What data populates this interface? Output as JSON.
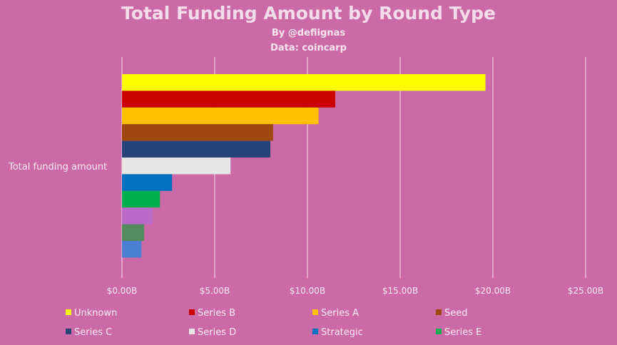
{
  "header": {
    "title": "Total Funding Amount by Round Type",
    "byline": "By @defiignas",
    "source": "Data: coincarp"
  },
  "chart_data": {
    "type": "bar",
    "orientation": "horizontal",
    "category_label": "Total funding amount",
    "x_ticks": [
      "$0.00B",
      "$5.00B",
      "$10.00B",
      "$15.00B",
      "$20.00B",
      "$25.00B"
    ],
    "xlim": [
      0,
      25
    ],
    "grid": true,
    "legend_position": "bottom",
    "series": [
      {
        "name": "Unknown",
        "value": 19.6,
        "color": "#ffff00"
      },
      {
        "name": "Series B",
        "value": 11.5,
        "color": "#cc0000"
      },
      {
        "name": "Series A",
        "value": 10.6,
        "color": "#ffc000"
      },
      {
        "name": "Seed",
        "value": 8.15,
        "color": "#9e480e"
      },
      {
        "name": "Series C",
        "value": 8.0,
        "color": "#264478"
      },
      {
        "name": "Series D",
        "value": 5.85,
        "color": "#e7e6e6"
      },
      {
        "name": "Strategic",
        "value": 2.7,
        "color": "#0070c0"
      },
      {
        "name": "Series E",
        "value": 2.05,
        "color": "#00b050"
      },
      {
        "name": "",
        "value": 1.65,
        "color": "#b86bc8"
      },
      {
        "name": "",
        "value": 1.2,
        "color": "#548b5e"
      },
      {
        "name": "",
        "value": 1.05,
        "color": "#4a7fd4"
      }
    ]
  }
}
